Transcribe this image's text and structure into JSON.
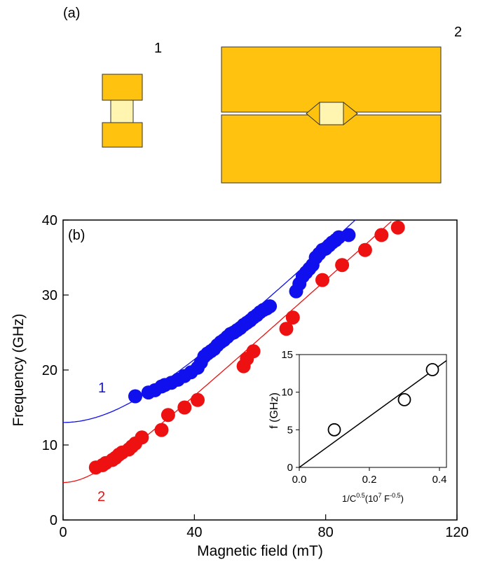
{
  "panel_a": {
    "label": "(a)",
    "device_1_label": "1",
    "device_2_label": "2",
    "colors": {
      "electrode": "#FFC20E",
      "junction": "#FFF5B0",
      "outline": "#333333"
    }
  },
  "chart_data": [
    {
      "type": "scatter",
      "panel_label": "(b)",
      "xlabel": "Magnetic field (mT)",
      "ylabel": "Frequency (GHz)",
      "xlim": [
        0,
        120
      ],
      "ylim": [
        0,
        40
      ],
      "xticks": [
        0,
        40,
        80,
        120
      ],
      "yticks": [
        0,
        10,
        20,
        30,
        40
      ],
      "grid": false,
      "series": [
        {
          "name": "1",
          "color": "#1010EE",
          "points": [
            [
              22,
              16.5
            ],
            [
              26,
              17
            ],
            [
              28,
              17.3
            ],
            [
              30,
              17.8
            ],
            [
              31,
              18
            ],
            [
              33,
              18.3
            ],
            [
              35,
              18.7
            ],
            [
              37,
              19.2
            ],
            [
              39,
              19.7
            ],
            [
              41,
              20.3
            ],
            [
              42,
              21
            ],
            [
              43,
              21.8
            ],
            [
              44,
              22.2
            ],
            [
              45,
              22.5
            ],
            [
              46,
              22.8
            ],
            [
              47,
              23.3
            ],
            [
              48,
              23.7
            ],
            [
              49,
              24
            ],
            [
              50,
              24.4
            ],
            [
              51,
              24.8
            ],
            [
              52,
              25
            ],
            [
              53,
              25.3
            ],
            [
              54,
              25.6
            ],
            [
              55,
              26
            ],
            [
              56,
              26.3
            ],
            [
              57,
              26.6
            ],
            [
              58,
              27
            ],
            [
              59,
              27.3
            ],
            [
              60,
              27.7
            ],
            [
              61,
              28
            ],
            [
              62,
              28.2
            ],
            [
              63,
              28.5
            ],
            [
              71,
              30.5
            ],
            [
              72,
              31.5
            ],
            [
              73,
              32.5
            ],
            [
              74,
              33
            ],
            [
              75,
              33.5
            ],
            [
              76,
              34
            ],
            [
              77,
              35
            ],
            [
              78,
              35.5
            ],
            [
              79,
              36
            ],
            [
              80,
              36.2
            ],
            [
              81,
              36.6
            ],
            [
              82,
              37
            ],
            [
              83,
              37.3
            ],
            [
              84,
              37.7
            ],
            [
              87,
              38
            ]
          ],
          "fit_curve": {
            "f0": 13,
            "slope": 0.425
          }
        },
        {
          "name": "2",
          "color": "#EE1111",
          "points": [
            [
              10,
              7
            ],
            [
              12,
              7.3
            ],
            [
              13,
              7.6
            ],
            [
              15,
              8
            ],
            [
              16,
              8.3
            ],
            [
              17,
              8.7
            ],
            [
              18,
              9
            ],
            [
              20,
              9.4
            ],
            [
              21,
              9.8
            ],
            [
              22,
              10.2
            ],
            [
              24,
              11
            ],
            [
              30,
              12
            ],
            [
              32,
              14
            ],
            [
              37,
              15
            ],
            [
              41,
              16
            ],
            [
              55,
              20.5
            ],
            [
              56,
              21.5
            ],
            [
              58,
              22.5
            ],
            [
              68,
              25.5
            ],
            [
              70,
              27
            ],
            [
              79,
              32
            ],
            [
              85,
              34
            ],
            [
              92,
              36
            ],
            [
              97,
              38
            ],
            [
              102,
              39
            ]
          ],
          "fit_curve": {
            "f0": 5,
            "slope": 0.395
          }
        }
      ]
    },
    {
      "type": "scatter",
      "xlabel": "1/C^0.5(10^7 F^-0.5)",
      "ylabel": "f (GHz)",
      "xlim": [
        0,
        0.42
      ],
      "ylim": [
        0,
        15
      ],
      "xticks": [
        0.0,
        0.2,
        0.4
      ],
      "xtick_labels": [
        "0.0",
        "0.2",
        "0.4"
      ],
      "yticks": [
        0,
        5,
        10,
        15
      ],
      "grid": false,
      "series": [
        {
          "name": "",
          "marker": "open-circle",
          "points": [
            [
              0.1,
              5
            ],
            [
              0.3,
              9
            ],
            [
              0.38,
              13
            ]
          ],
          "fit_line": {
            "x0": 0,
            "y0": 0,
            "x1": 0.42,
            "y1": 14.2
          }
        }
      ]
    }
  ]
}
